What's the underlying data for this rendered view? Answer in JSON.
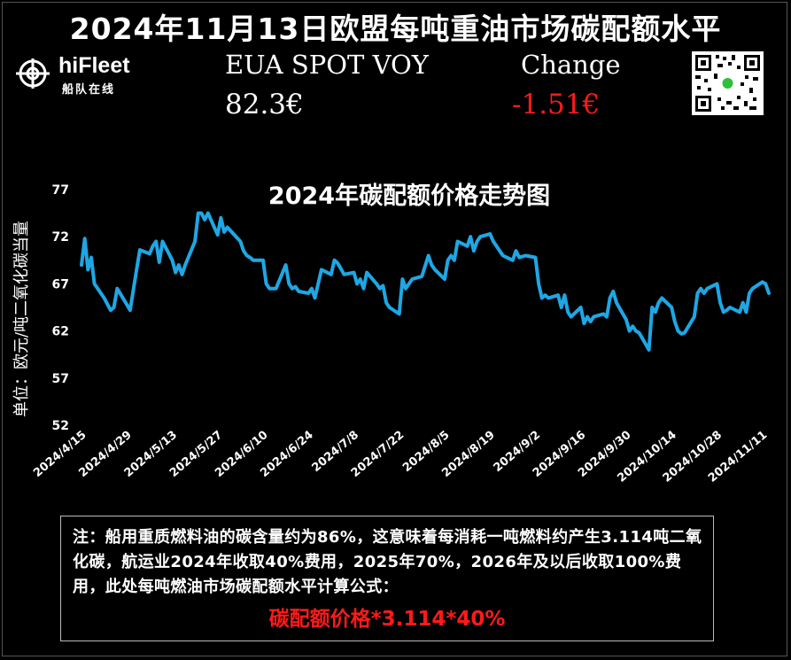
{
  "header": {
    "title": "2024年11月13日欧盟每吨重油市场碳配额水平",
    "logo_name": "hiFleet",
    "logo_sub": "船队在线",
    "eua_label": "EUA SPOT VOY",
    "eua_value": "82.3€",
    "change_label": "Change",
    "change_value": "-1.51€"
  },
  "colors": {
    "background": "#000000",
    "line": "#1ea7e4",
    "negative": "#ff1a1a"
  },
  "chart_data": {
    "type": "line",
    "title": "2024年碳配额价格走势图",
    "ylabel": "单位：欧元/吨二氧化碳当量",
    "xlabel": "",
    "ylim": [
      52,
      77
    ],
    "yticks": [
      52,
      57,
      62,
      67,
      72,
      77
    ],
    "grid": false,
    "legend": "none",
    "xticks": [
      "2024/4/15",
      "2024/4/29",
      "2024/5/13",
      "2024/5/27",
      "2024/6/10",
      "2024/6/24",
      "2024/7/8",
      "2024/7/22",
      "2024/8/5",
      "2024/8/19",
      "2024/9/2",
      "2024/9/16",
      "2024/9/30",
      "2024/10/14",
      "2024/10/28",
      "2024/11/11"
    ],
    "x_start": "2024/4/15",
    "x_end": "2024/11/13",
    "series": [
      {
        "points": [
          [
            "2024/4/15",
            69
          ],
          [
            "2024/4/16",
            71.8
          ],
          [
            "2024/4/17",
            68.5
          ],
          [
            "2024/4/18",
            69.8
          ],
          [
            "2024/4/19",
            67
          ],
          [
            "2024/4/22",
            65.5
          ],
          [
            "2024/4/24",
            64.2
          ],
          [
            "2024/4/25",
            64.5
          ],
          [
            "2024/4/26",
            66.5
          ],
          [
            "2024/4/29",
            64.8
          ],
          [
            "2024/4/30",
            64.2
          ],
          [
            "2024/5/2",
            68.5
          ],
          [
            "2024/5/3",
            70.6
          ],
          [
            "2024/5/6",
            70.2
          ],
          [
            "2024/5/7",
            71
          ],
          [
            "2024/5/8",
            71.5
          ],
          [
            "2024/5/9",
            69.3
          ],
          [
            "2024/5/10",
            71.5
          ],
          [
            "2024/5/13",
            69.5
          ],
          [
            "2024/5/14",
            68.2
          ],
          [
            "2024/5/15",
            69
          ],
          [
            "2024/5/16",
            68
          ],
          [
            "2024/5/17",
            69
          ],
          [
            "2024/5/20",
            71.5
          ],
          [
            "2024/5/21",
            74.5
          ],
          [
            "2024/5/22",
            74.5
          ],
          [
            "2024/5/23",
            73.8
          ],
          [
            "2024/5/24",
            74.5
          ],
          [
            "2024/5/27",
            72.2
          ],
          [
            "2024/5/28",
            74
          ],
          [
            "2024/5/29",
            72.5
          ],
          [
            "2024/5/30",
            73
          ],
          [
            "2024/6/3",
            71.5
          ],
          [
            "2024/6/4",
            70.5
          ],
          [
            "2024/6/5",
            70
          ],
          [
            "2024/6/6",
            69.8
          ],
          [
            "2024/6/7",
            69.5
          ],
          [
            "2024/6/10",
            69.5
          ],
          [
            "2024/6/11",
            67
          ],
          [
            "2024/6/12",
            66.5
          ],
          [
            "2024/6/14",
            66.5
          ],
          [
            "2024/6/17",
            69
          ],
          [
            "2024/6/18",
            67
          ],
          [
            "2024/6/19",
            66.5
          ],
          [
            "2024/6/20",
            66.7
          ],
          [
            "2024/6/21",
            66.2
          ],
          [
            "2024/6/24",
            66
          ],
          [
            "2024/6/25",
            66.5
          ],
          [
            "2024/6/26",
            65.5
          ],
          [
            "2024/6/27",
            67
          ],
          [
            "2024/6/28",
            68.5
          ],
          [
            "2024/7/1",
            68
          ],
          [
            "2024/7/2",
            69.5
          ],
          [
            "2024/7/3",
            69.2
          ],
          [
            "2024/7/5",
            68
          ],
          [
            "2024/7/8",
            68.2
          ],
          [
            "2024/7/9",
            67
          ],
          [
            "2024/7/10",
            67.5
          ],
          [
            "2024/7/11",
            66.5
          ],
          [
            "2024/7/12",
            68.2
          ],
          [
            "2024/7/15",
            67
          ],
          [
            "2024/7/16",
            66.5
          ],
          [
            "2024/7/17",
            66.8
          ],
          [
            "2024/7/18",
            65
          ],
          [
            "2024/7/19",
            64.5
          ],
          [
            "2024/7/22",
            63.8
          ],
          [
            "2024/7/23",
            67.5
          ],
          [
            "2024/7/24",
            66.5
          ],
          [
            "2024/7/25",
            67
          ],
          [
            "2024/7/26",
            67.5
          ],
          [
            "2024/7/29",
            67.8
          ],
          [
            "2024/7/31",
            70
          ],
          [
            "2024/8/1",
            69
          ],
          [
            "2024/8/2",
            68.5
          ],
          [
            "2024/8/5",
            67.5
          ],
          [
            "2024/8/6",
            69.5
          ],
          [
            "2024/8/7",
            70
          ],
          [
            "2024/8/8",
            69.5
          ],
          [
            "2024/8/9",
            71.5
          ],
          [
            "2024/8/12",
            71
          ],
          [
            "2024/8/13",
            72
          ],
          [
            "2024/8/14",
            70.5
          ],
          [
            "2024/8/15",
            71.5
          ],
          [
            "2024/8/16",
            72
          ],
          [
            "2024/8/19",
            72.3
          ],
          [
            "2024/8/20",
            71.5
          ],
          [
            "2024/8/21",
            71
          ],
          [
            "2024/8/22",
            70.5
          ],
          [
            "2024/8/23",
            70
          ],
          [
            "2024/8/26",
            69.5
          ],
          [
            "2024/8/27",
            70.5
          ],
          [
            "2024/8/28",
            69.8
          ],
          [
            "2024/8/30",
            70
          ],
          [
            "2024/9/2",
            69.8
          ],
          [
            "2024/9/3",
            67
          ],
          [
            "2024/9/4",
            65.5
          ],
          [
            "2024/9/5",
            65.8
          ],
          [
            "2024/9/6",
            65.5
          ],
          [
            "2024/9/9",
            65.8
          ],
          [
            "2024/9/10",
            64.5
          ],
          [
            "2024/9/11",
            65.8
          ],
          [
            "2024/9/12",
            64
          ],
          [
            "2024/9/13",
            63.5
          ],
          [
            "2024/9/16",
            64.5
          ],
          [
            "2024/9/17",
            62.8
          ],
          [
            "2024/9/18",
            63.5
          ],
          [
            "2024/9/19",
            63
          ],
          [
            "2024/9/20",
            63.5
          ],
          [
            "2024/9/23",
            63.8
          ],
          [
            "2024/9/24",
            63.5
          ],
          [
            "2024/9/25",
            65.5
          ],
          [
            "2024/9/26",
            66.2
          ],
          [
            "2024/9/27",
            65
          ],
          [
            "2024/9/30",
            63.2
          ],
          [
            "2024/10/1",
            62
          ],
          [
            "2024/10/2",
            62.5
          ],
          [
            "2024/10/3",
            62
          ],
          [
            "2024/10/4",
            61.8
          ],
          [
            "2024/10/7",
            60
          ],
          [
            "2024/10/8",
            64.5
          ],
          [
            "2024/10/9",
            64
          ],
          [
            "2024/10/10",
            65
          ],
          [
            "2024/10/11",
            65.5
          ],
          [
            "2024/10/14",
            64.5
          ],
          [
            "2024/10/15",
            63
          ],
          [
            "2024/10/16",
            62
          ],
          [
            "2024/10/17",
            61.7
          ],
          [
            "2024/10/18",
            61.8
          ],
          [
            "2024/10/21",
            63.5
          ],
          [
            "2024/10/22",
            66
          ],
          [
            "2024/10/23",
            66.5
          ],
          [
            "2024/10/24",
            66
          ],
          [
            "2024/10/25",
            66.5
          ],
          [
            "2024/10/28",
            67
          ],
          [
            "2024/10/29",
            65
          ],
          [
            "2024/10/30",
            64
          ],
          [
            "2024/10/31",
            64.2
          ],
          [
            "2024/11/1",
            64.5
          ],
          [
            "2024/11/4",
            64
          ],
          [
            "2024/11/5",
            65
          ],
          [
            "2024/11/6",
            64
          ],
          [
            "2024/11/7",
            66
          ],
          [
            "2024/11/8",
            66.5
          ],
          [
            "2024/11/11",
            67.2
          ],
          [
            "2024/11/12",
            67
          ],
          [
            "2024/11/13",
            66
          ]
        ]
      }
    ]
  },
  "note": {
    "text": "注：船用重质燃料油的碳含量约为86%，这意味着每消耗一吨燃料约产生3.114吨二氧化碳，航运业2024年收取40%费用，2025年70%，2026年及以后收取100%费用，此处每吨燃油市场碳配额水平计算公式：",
    "formula": "碳配额价格*3.114*40%"
  }
}
